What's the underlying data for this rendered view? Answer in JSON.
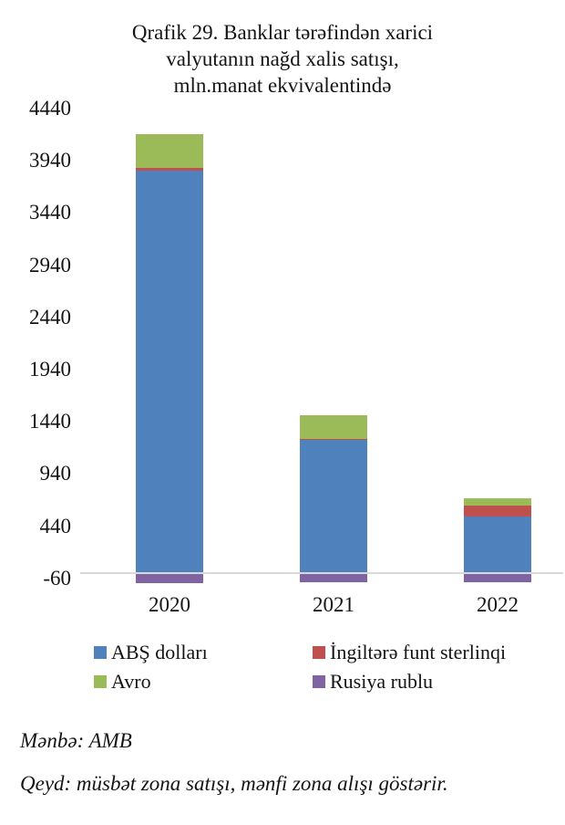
{
  "chart_data": {
    "type": "bar",
    "stacked": true,
    "title": "Qrafik 29. Banklar tərəfindən xarici valyutanın nağd xalis satışı, mln.manat ekvivalentində",
    "title_lines": [
      "Qrafik 29. Banklar tərəfindən xarici",
      "valyutanın nağd xalis satışı,",
      "mln.manat ekvivalentində"
    ],
    "categories": [
      "2020",
      "2021",
      "2022"
    ],
    "series": [
      {
        "key": "usd",
        "name": "ABŞ dolları",
        "color": "#4F81BD",
        "values": [
          3850,
          1270,
          535
        ]
      },
      {
        "key": "gbp",
        "name": "İngiltərə funt sterlinqi",
        "color": "#C0504D",
        "values": [
          20,
          10,
          105
        ]
      },
      {
        "key": "eur",
        "name": "Avro",
        "color": "#9BBB59",
        "values": [
          330,
          220,
          70
        ]
      },
      {
        "key": "rub",
        "name": "Rusiya rublu",
        "color": "#8064A2",
        "values": [
          -105,
          -100,
          -100
        ]
      }
    ],
    "y_ticks": [
      4440,
      3940,
      3440,
      2940,
      2440,
      1940,
      1440,
      940,
      440,
      -60
    ],
    "ylim": [
      -200,
      4640
    ],
    "xlabel": "",
    "ylabel": "",
    "grid": false,
    "axis_line_color": "#D9D9D9",
    "legend_position": "bottom-two-columns",
    "note_positive_negative": "müsbət zona satışı, mənfi zona alışı"
  },
  "footer": {
    "source": "Mənbə: AMB",
    "note": "Qeyd: müsbət zona satışı, mənfi zona alışı göstərir."
  }
}
